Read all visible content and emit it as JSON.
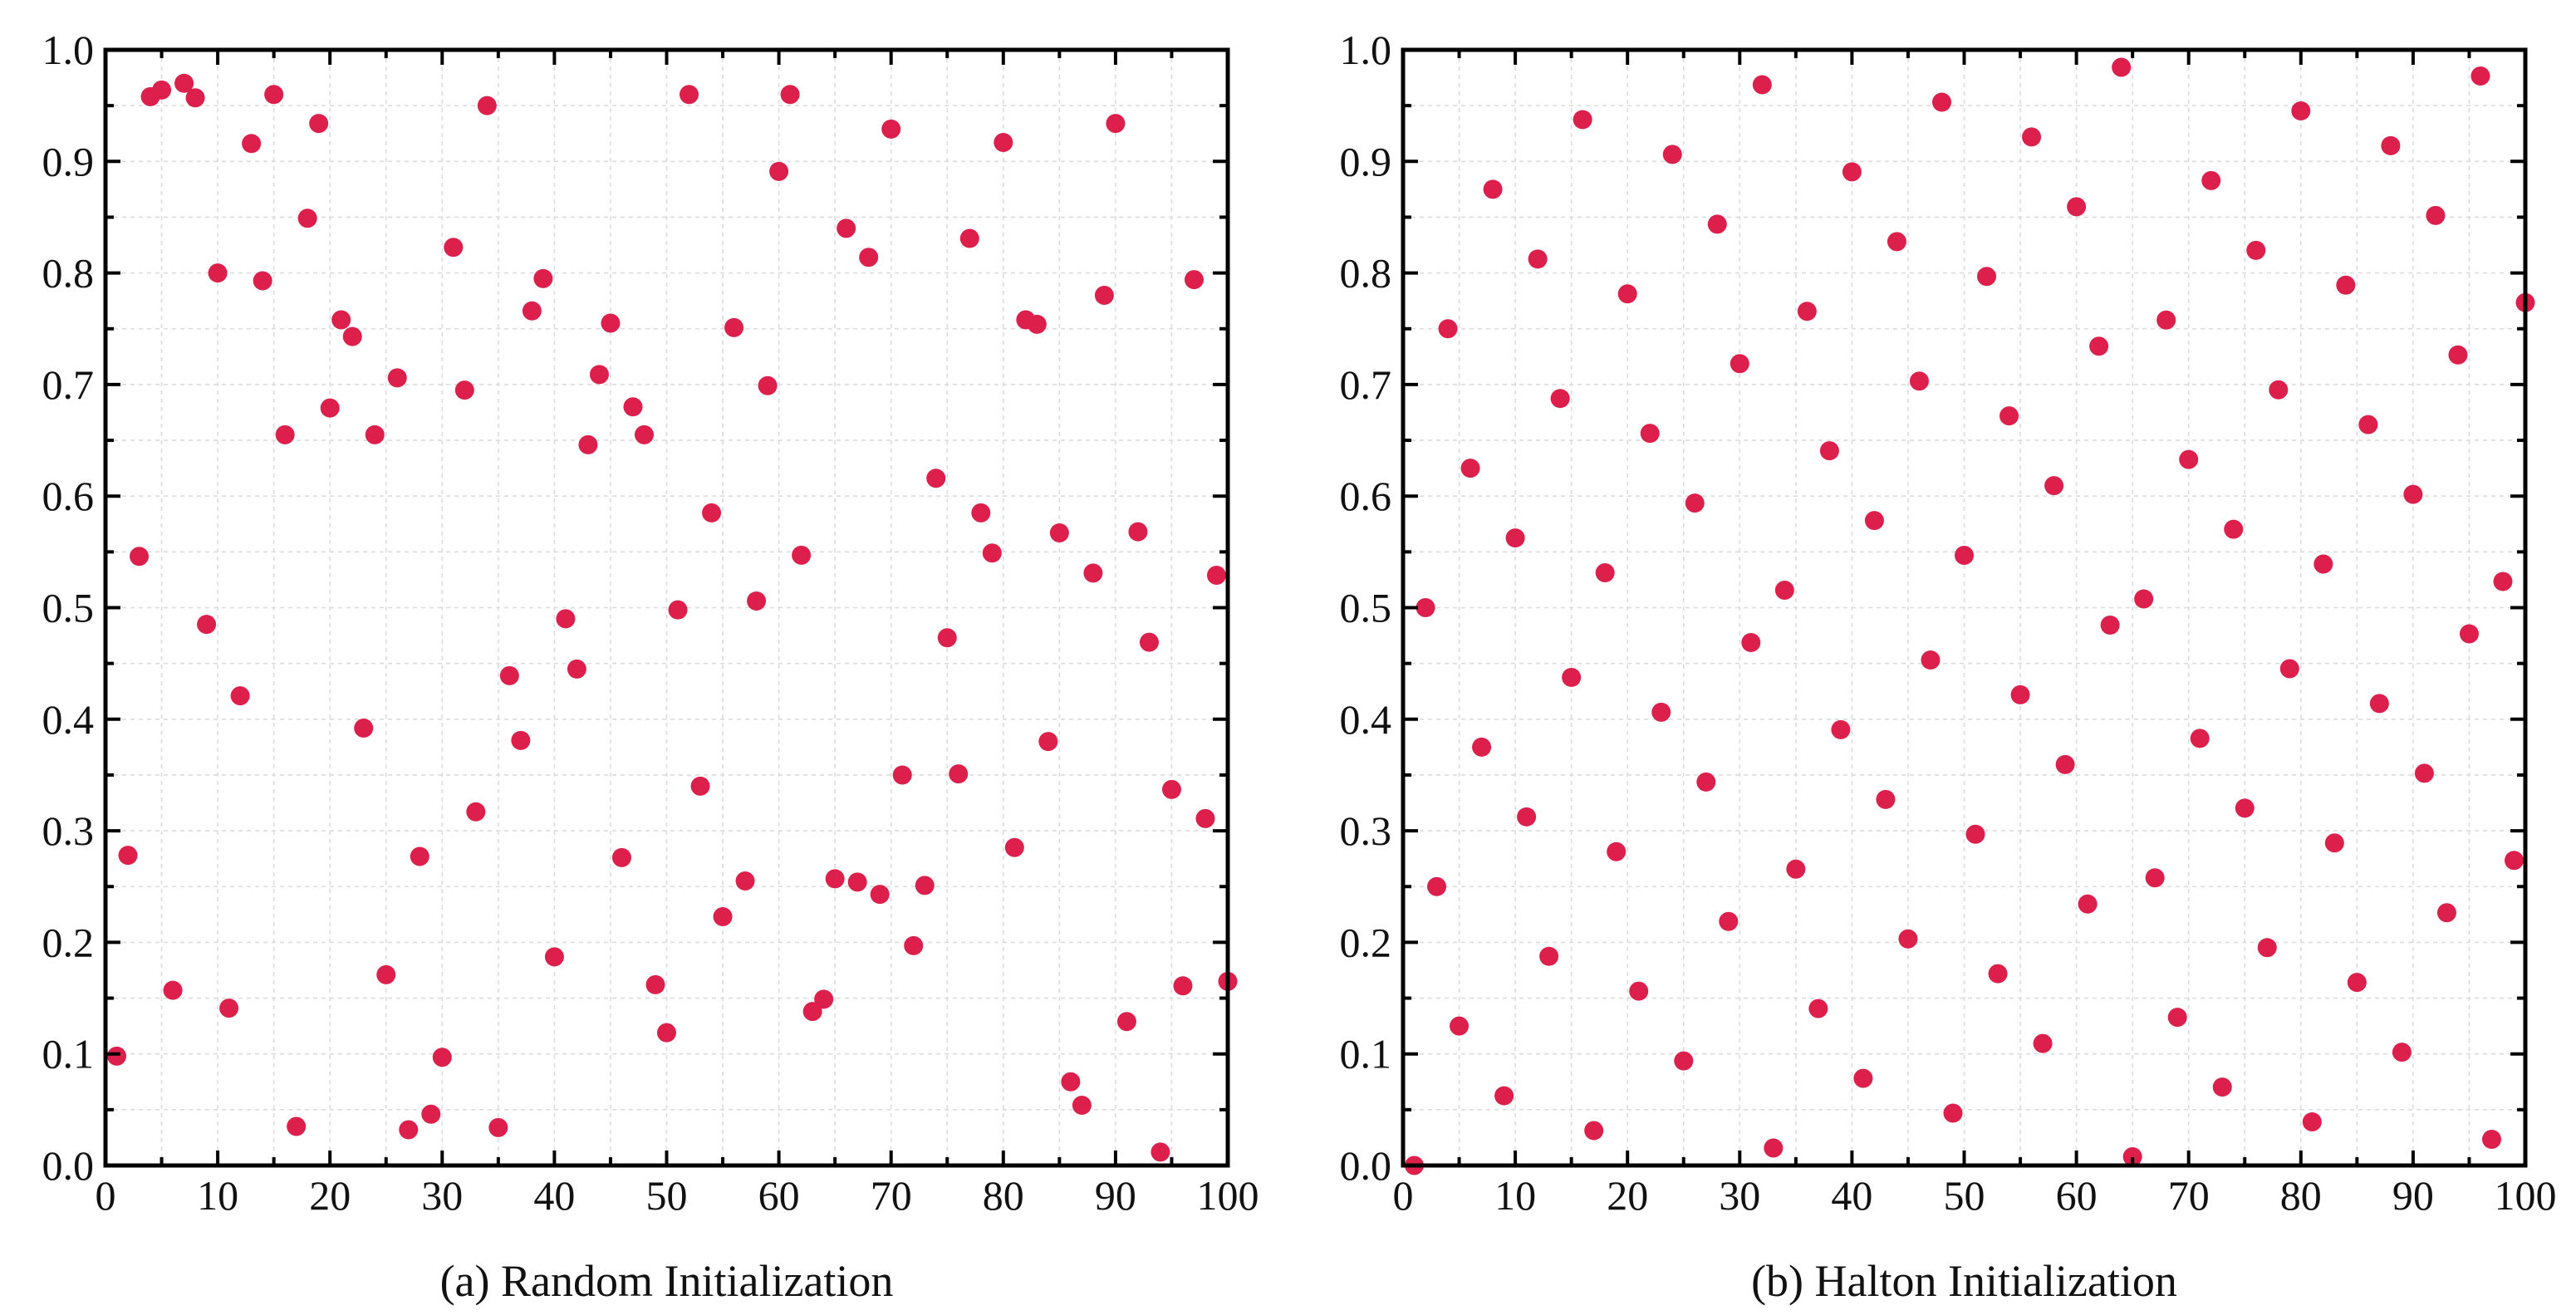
{
  "chart_data": [
    {
      "type": "scatter",
      "title": "(a) Random Initialization",
      "xlabel": "",
      "ylabel": "",
      "xlim": [
        0,
        100
      ],
      "ylim": [
        0,
        1
      ],
      "xticks": [
        0,
        10,
        20,
        30,
        40,
        50,
        60,
        70,
        80,
        90,
        100
      ],
      "yticks": [
        0.0,
        0.1,
        0.2,
        0.3,
        0.4,
        0.5,
        0.6,
        0.7,
        0.8,
        0.9,
        1.0
      ],
      "grid": true,
      "marker_color": "#dc1f4b",
      "x": [
        1,
        2,
        3,
        4,
        5,
        6,
        7,
        8,
        9,
        10,
        11,
        12,
        13,
        14,
        15,
        16,
        17,
        18,
        19,
        20,
        21,
        22,
        23,
        24,
        25,
        26,
        27,
        28,
        29,
        30,
        31,
        32,
        33,
        34,
        35,
        36,
        37,
        38,
        39,
        40,
        41,
        42,
        43,
        44,
        45,
        46,
        47,
        48,
        49,
        50,
        51,
        52,
        53,
        54,
        55,
        56,
        57,
        58,
        59,
        60,
        61,
        62,
        63,
        64,
        65,
        66,
        67,
        68,
        69,
        70,
        71,
        72,
        73,
        74,
        75,
        76,
        77,
        78,
        79,
        80,
        81,
        82,
        83,
        84,
        85,
        86,
        87,
        88,
        89,
        90,
        91,
        92,
        93,
        94,
        95,
        96,
        97,
        98,
        99,
        100
      ],
      "y": [
        0.098,
        0.278,
        0.546,
        0.958,
        0.964,
        0.157,
        0.97,
        0.957,
        0.485,
        0.8,
        0.141,
        0.421,
        0.916,
        0.793,
        0.96,
        0.655,
        0.035,
        0.849,
        0.934,
        0.679,
        0.758,
        0.743,
        0.392,
        0.655,
        0.171,
        0.706,
        0.032,
        0.277,
        0.046,
        0.097,
        0.823,
        0.695,
        0.317,
        0.95,
        0.034,
        0.439,
        0.381,
        0.766,
        0.795,
        0.187,
        0.49,
        0.445,
        0.646,
        0.709,
        0.755,
        0.276,
        0.68,
        0.655,
        0.162,
        0.119,
        0.498,
        0.96,
        0.34,
        0.585,
        0.223,
        0.751,
        0.255,
        0.506,
        0.699,
        0.891,
        0.96,
        0.547,
        0.138,
        0.149,
        0.257,
        0.84,
        0.254,
        0.814,
        0.243,
        0.929,
        0.35,
        0.197,
        0.251,
        0.616,
        0.473,
        0.351,
        0.831,
        0.585,
        0.549,
        0.917,
        0.285,
        0.758,
        0.754,
        0.38,
        0.567,
        0.075,
        0.054,
        0.531,
        0.78,
        0.934,
        0.129,
        0.568,
        0.469,
        0.012,
        0.337,
        0.161,
        0.794,
        0.311,
        0.529,
        0.165
      ]
    },
    {
      "type": "scatter",
      "title": "(b) Halton Initialization",
      "xlabel": "",
      "ylabel": "",
      "xlim": [
        0,
        100
      ],
      "ylim": [
        0,
        1
      ],
      "xticks": [
        0,
        10,
        20,
        30,
        40,
        50,
        60,
        70,
        80,
        90,
        100
      ],
      "yticks": [
        0.0,
        0.1,
        0.2,
        0.3,
        0.4,
        0.5,
        0.6,
        0.7,
        0.8,
        0.9,
        1.0
      ],
      "grid": true,
      "marker_color": "#dc1f4b",
      "x": [
        1,
        2,
        3,
        4,
        5,
        6,
        7,
        8,
        9,
        10,
        11,
        12,
        13,
        14,
        15,
        16,
        17,
        18,
        19,
        20,
        21,
        22,
        23,
        24,
        25,
        26,
        27,
        28,
        29,
        30,
        31,
        32,
        33,
        34,
        35,
        36,
        37,
        38,
        39,
        40,
        41,
        42,
        43,
        44,
        45,
        46,
        47,
        48,
        49,
        50,
        51,
        52,
        53,
        54,
        55,
        56,
        57,
        58,
        59,
        60,
        61,
        62,
        63,
        64,
        65,
        66,
        67,
        68,
        69,
        70,
        71,
        72,
        73,
        74,
        75,
        76,
        77,
        78,
        79,
        80,
        81,
        82,
        83,
        84,
        85,
        86,
        87,
        88,
        89,
        90,
        91,
        92,
        93,
        94,
        95,
        96,
        97,
        98,
        99,
        100
      ],
      "y": [
        0.0,
        0.5,
        0.25,
        0.75,
        0.125,
        0.625,
        0.375,
        0.875,
        0.0625,
        0.5625,
        0.3125,
        0.8125,
        0.1875,
        0.6875,
        0.4375,
        0.9375,
        0.03125,
        0.53125,
        0.28125,
        0.78125,
        0.15625,
        0.65625,
        0.40625,
        0.90625,
        0.09375,
        0.59375,
        0.34375,
        0.84375,
        0.21875,
        0.71875,
        0.46875,
        0.96875,
        0.015625,
        0.515625,
        0.265625,
        0.765625,
        0.140625,
        0.640625,
        0.390625,
        0.890625,
        0.078125,
        0.578125,
        0.328125,
        0.828125,
        0.203125,
        0.703125,
        0.453125,
        0.953125,
        0.046875,
        0.546875,
        0.296875,
        0.796875,
        0.171875,
        0.671875,
        0.421875,
        0.921875,
        0.109375,
        0.609375,
        0.359375,
        0.859375,
        0.234375,
        0.734375,
        0.484375,
        0.984375,
        0.0078125,
        0.5078125,
        0.2578125,
        0.7578125,
        0.1328125,
        0.6328125,
        0.3828125,
        0.8828125,
        0.0703125,
        0.5703125,
        0.3203125,
        0.8203125,
        0.1953125,
        0.6953125,
        0.4453125,
        0.9453125,
        0.0390625,
        0.5390625,
        0.2890625,
        0.7890625,
        0.1640625,
        0.6640625,
        0.4140625,
        0.9140625,
        0.1015625,
        0.6015625,
        0.3515625,
        0.8515625,
        0.2265625,
        0.7265625,
        0.4765625,
        0.9765625,
        0.0234375,
        0.5234375,
        0.2734375,
        0.7734375
      ]
    }
  ]
}
